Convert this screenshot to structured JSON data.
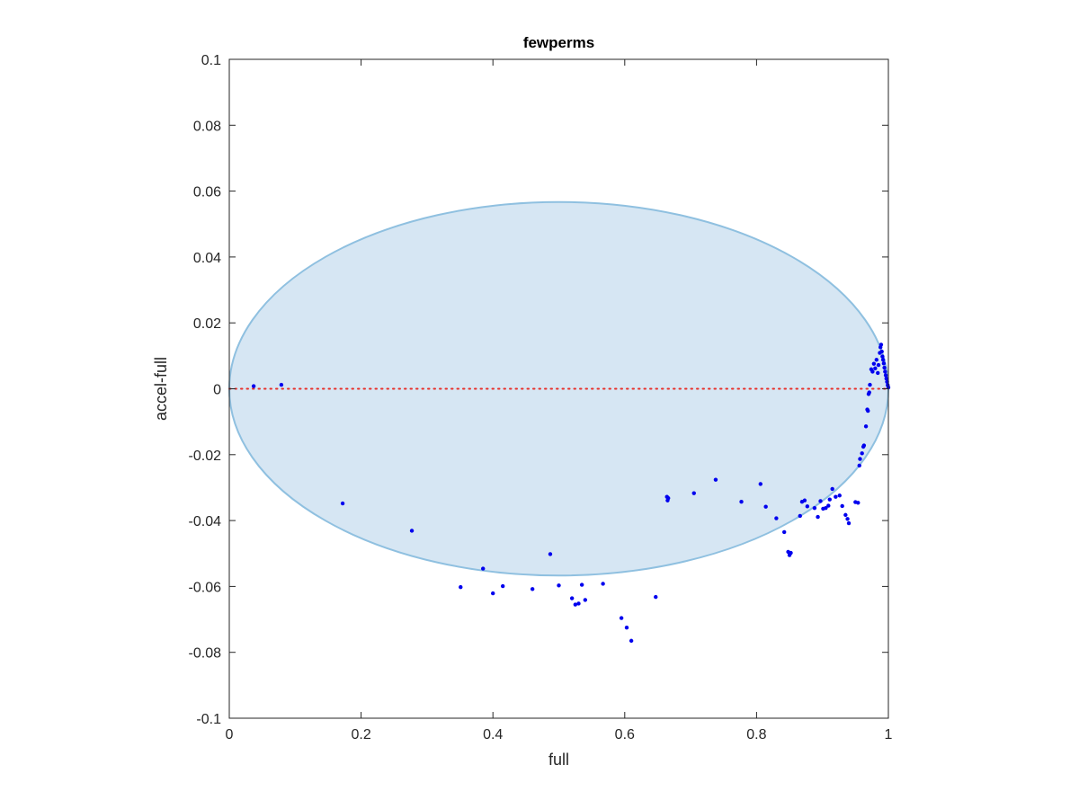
{
  "chart_data": {
    "type": "scatter",
    "title": "fewperms",
    "xlabel": "full",
    "ylabel": "accel-full",
    "xlim": [
      0,
      1
    ],
    "ylim": [
      -0.1,
      0.1
    ],
    "xticks": [
      "0",
      "0.2",
      "0.4",
      "0.6",
      "0.8",
      "1"
    ],
    "xtick_values": [
      0,
      0.2,
      0.4,
      0.6,
      0.8,
      1
    ],
    "yticks": [
      "0.1",
      "0.08",
      "0.06",
      "0.04",
      "0.02",
      "0",
      "-0.02",
      "-0.04",
      "-0.06",
      "-0.08",
      "-0.1"
    ],
    "ytick_values": [
      0.1,
      0.08,
      0.06,
      0.04,
      0.02,
      0,
      -0.02,
      -0.04,
      -0.06,
      -0.08,
      -0.1
    ],
    "grid": false,
    "ellipse": {
      "center": [
        0.5,
        0.0
      ],
      "x_radius": 0.5,
      "y_radius": 0.0567,
      "rotation_deg": 0,
      "fill_color": "#d6e6f3",
      "edge_color": "#8fc0e0"
    },
    "reference_line": {
      "y": 0,
      "color": "#e8302a",
      "style": "dotted"
    },
    "point_color": "#0000ee",
    "points": [
      [
        0.037,
        0.0008
      ],
      [
        0.079,
        0.0012
      ],
      [
        0.172,
        -0.0348
      ],
      [
        0.277,
        -0.0431
      ],
      [
        0.351,
        -0.0602
      ],
      [
        0.385,
        -0.0546
      ],
      [
        0.4,
        -0.0621
      ],
      [
        0.415,
        -0.0599
      ],
      [
        0.46,
        -0.0608
      ],
      [
        0.487,
        -0.0502
      ],
      [
        0.5,
        -0.0597
      ],
      [
        0.52,
        -0.0636
      ],
      [
        0.525,
        -0.0655
      ],
      [
        0.53,
        -0.0652
      ],
      [
        0.535,
        -0.0595
      ],
      [
        0.54,
        -0.0641
      ],
      [
        0.567,
        -0.0592
      ],
      [
        0.595,
        -0.0696
      ],
      [
        0.603,
        -0.0725
      ],
      [
        0.61,
        -0.0765
      ],
      [
        0.647,
        -0.0632
      ],
      [
        0.664,
        -0.0328
      ],
      [
        0.665,
        -0.0339
      ],
      [
        0.666,
        -0.0332
      ],
      [
        0.705,
        -0.0317
      ],
      [
        0.738,
        -0.0276
      ],
      [
        0.777,
        -0.0343
      ],
      [
        0.806,
        -0.0289
      ],
      [
        0.814,
        -0.0358
      ],
      [
        0.83,
        -0.0393
      ],
      [
        0.842,
        -0.0435
      ],
      [
        0.848,
        -0.0495
      ],
      [
        0.85,
        -0.0505
      ],
      [
        0.852,
        -0.0498
      ],
      [
        0.866,
        -0.0386
      ],
      [
        0.869,
        -0.0343
      ],
      [
        0.873,
        -0.0339
      ],
      [
        0.877,
        -0.0357
      ],
      [
        0.888,
        -0.0362
      ],
      [
        0.893,
        -0.0389
      ],
      [
        0.897,
        -0.0341
      ],
      [
        0.901,
        -0.0364
      ],
      [
        0.905,
        -0.0362
      ],
      [
        0.909,
        -0.0355
      ],
      [
        0.911,
        -0.0336
      ],
      [
        0.915,
        -0.0304
      ],
      [
        0.92,
        -0.0328
      ],
      [
        0.926,
        -0.0324
      ],
      [
        0.93,
        -0.0356
      ],
      [
        0.935,
        -0.0383
      ],
      [
        0.938,
        -0.0395
      ],
      [
        0.94,
        -0.0408
      ],
      [
        0.95,
        -0.0344
      ],
      [
        0.954,
        -0.0346
      ],
      [
        0.956,
        -0.0233
      ],
      [
        0.957,
        -0.0213
      ],
      [
        0.96,
        -0.0196
      ],
      [
        0.962,
        -0.0176
      ],
      [
        0.963,
        -0.0172
      ],
      [
        0.966,
        -0.0114
      ],
      [
        0.968,
        -0.0063
      ],
      [
        0.969,
        -0.0067
      ],
      [
        0.97,
        -0.0016
      ],
      [
        0.971,
        -0.0011
      ],
      [
        0.972,
        0.0012
      ],
      [
        0.974,
        0.0059
      ],
      [
        0.976,
        0.0052
      ],
      [
        0.978,
        0.0076
      ],
      [
        0.98,
        0.0062
      ],
      [
        0.982,
        0.0088
      ],
      [
        0.984,
        0.0048
      ],
      [
        0.985,
        0.0072
      ],
      [
        0.987,
        0.0109
      ],
      [
        0.988,
        0.0126
      ],
      [
        0.989,
        0.0134
      ],
      [
        0.99,
        0.0113
      ],
      [
        0.991,
        0.0098
      ],
      [
        0.992,
        0.0088
      ],
      [
        0.993,
        0.0077
      ],
      [
        0.994,
        0.0064
      ],
      [
        0.995,
        0.0052
      ],
      [
        0.996,
        0.0041
      ],
      [
        0.997,
        0.0031
      ],
      [
        0.998,
        0.0021
      ],
      [
        0.999,
        0.0011
      ],
      [
        1.0,
        0.0004
      ]
    ]
  }
}
